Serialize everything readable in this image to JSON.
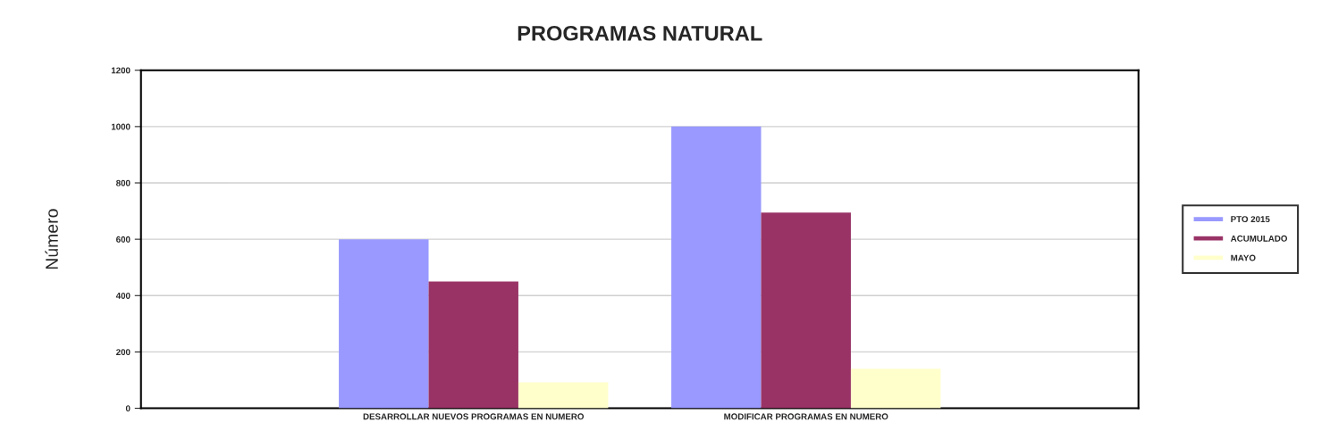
{
  "chart_data": {
    "type": "bar",
    "title": "PROGRAMAS NATURAL",
    "ylabel": "Número",
    "categories": [
      "DESARROLLAR NUEVOS PROGRAMAS EN NUMERO",
      "MODIFICAR PROGRAMAS EN NUMERO"
    ],
    "series": [
      {
        "name": "PTO 2015",
        "color": "#9999ff",
        "values": [
          600,
          1000
        ]
      },
      {
        "name": "ACUMULADO",
        "color": "#993366",
        "values": [
          450,
          695
        ]
      },
      {
        "name": "MAYO",
        "color": "#ffffcc",
        "values": [
          92,
          140
        ]
      }
    ],
    "ylim": [
      0,
      1200
    ],
    "yticks": [
      0,
      200,
      400,
      600,
      800,
      1000,
      1200
    ],
    "grid": "y",
    "legend": "right"
  }
}
